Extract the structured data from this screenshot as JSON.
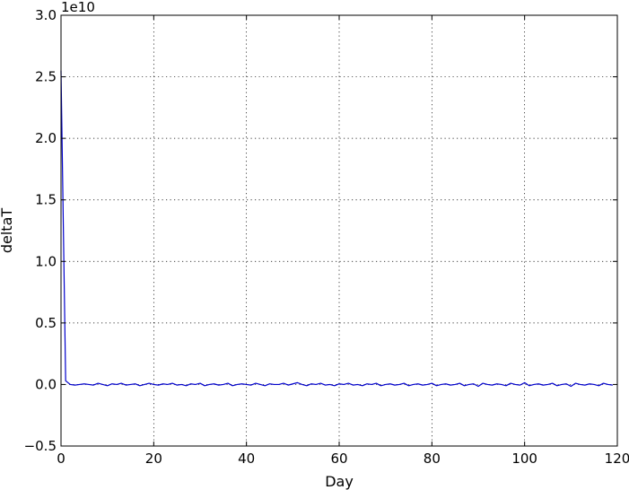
{
  "chart_data": {
    "type": "line",
    "title": "",
    "xlabel": "Day",
    "ylabel": "deltaT",
    "y_offset_label": "1e10",
    "xlim": [
      0,
      120
    ],
    "ylim": [
      -0.5,
      3.0
    ],
    "x_scale": "linear",
    "y_scale": "linear",
    "y_multiplier": 10000000000,
    "grid": true,
    "grid_style": "dotted",
    "legend": "none",
    "x_ticks": [
      0,
      20,
      40,
      60,
      80,
      100,
      120
    ],
    "x_tick_labels": [
      "0",
      "20",
      "40",
      "60",
      "80",
      "100",
      "120"
    ],
    "y_ticks": [
      -0.5,
      0.0,
      0.5,
      1.0,
      1.5,
      2.0,
      2.5,
      3.0
    ],
    "y_tick_labels": [
      "−0.5",
      "0.0",
      "0.5",
      "1.0",
      "1.5",
      "2.0",
      "2.5",
      "3.0"
    ],
    "series": [
      {
        "color": "#0000cc",
        "x": [
          0,
          1,
          2,
          3,
          4,
          5,
          6,
          7,
          8,
          9,
          10,
          11,
          12,
          13,
          14,
          15,
          16,
          17,
          18,
          19,
          20,
          21,
          22,
          23,
          24,
          25,
          26,
          27,
          28,
          29,
          30,
          31,
          32,
          33,
          34,
          35,
          36,
          37,
          38,
          39,
          40,
          41,
          42,
          43,
          44,
          45,
          46,
          47,
          48,
          49,
          50,
          51,
          52,
          53,
          54,
          55,
          56,
          57,
          58,
          59,
          60,
          61,
          62,
          63,
          64,
          65,
          66,
          67,
          68,
          69,
          70,
          71,
          72,
          73,
          74,
          75,
          76,
          77,
          78,
          79,
          80,
          81,
          82,
          83,
          84,
          85,
          86,
          87,
          88,
          89,
          90,
          91,
          92,
          93,
          94,
          95,
          96,
          97,
          98,
          99,
          100,
          101,
          102,
          103,
          104,
          105,
          106,
          107,
          108,
          109,
          110,
          111,
          112,
          113,
          114,
          115,
          116,
          117,
          118,
          119
        ],
        "y": [
          2.55,
          0.03,
          0.0,
          -0.005,
          0.0,
          0.005,
          0.0,
          -0.005,
          0.01,
          0.0,
          -0.01,
          0.005,
          0.0,
          0.01,
          -0.005,
          0.0,
          0.005,
          -0.01,
          0.0,
          0.01,
          0.0,
          -0.005,
          0.005,
          0.0,
          0.01,
          -0.005,
          0.0,
          -0.01,
          0.005,
          0.0,
          0.01,
          -0.01,
          0.0,
          0.005,
          -0.005,
          0.0,
          0.01,
          -0.01,
          0.0,
          0.005,
          0.0,
          -0.005,
          0.01,
          0.0,
          -0.01,
          0.005,
          0.0,
          0.0,
          0.01,
          -0.005,
          0.005,
          0.015,
          0.0,
          -0.01,
          0.005,
          0.0,
          0.01,
          -0.005,
          0.0,
          -0.01,
          0.005,
          0.0,
          0.01,
          -0.005,
          0.0,
          -0.01,
          0.005,
          0.0,
          0.01,
          -0.01,
          0.0,
          0.005,
          -0.005,
          0.0,
          0.01,
          -0.01,
          0.0,
          0.005,
          -0.005,
          0.0,
          0.01,
          -0.01,
          0.0,
          0.005,
          -0.005,
          0.0,
          0.01,
          -0.01,
          0.0,
          0.005,
          -0.015,
          0.01,
          0.0,
          -0.005,
          0.005,
          0.0,
          -0.01,
          0.01,
          0.0,
          -0.005,
          0.015,
          -0.01,
          0.0,
          0.005,
          -0.005,
          0.0,
          0.01,
          -0.01,
          0.0,
          0.005,
          -0.015,
          0.01,
          0.0,
          -0.005,
          0.005,
          0.0,
          -0.01,
          0.01,
          0.0,
          -0.005
        ]
      }
    ]
  }
}
